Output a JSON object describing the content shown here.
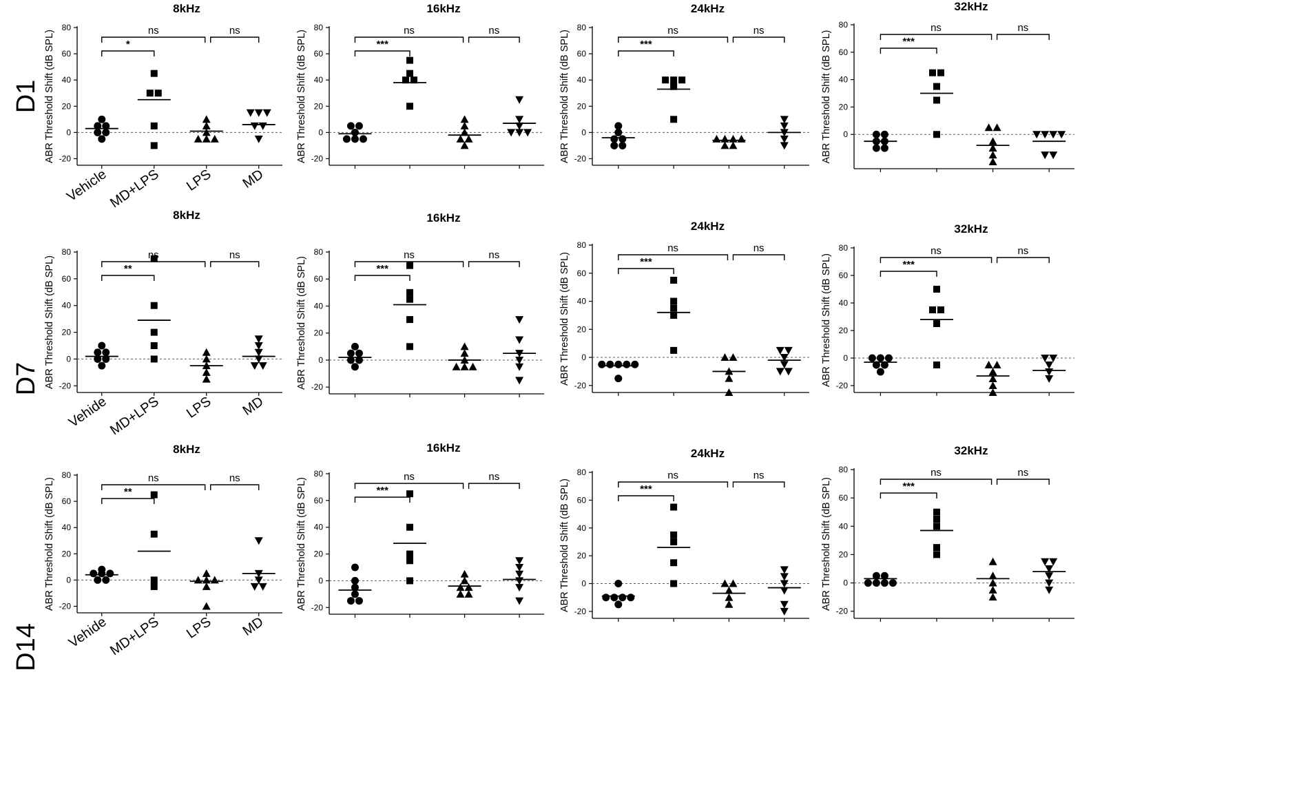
{
  "figure": {
    "row_labels": [
      "D1",
      "D7",
      "D14"
    ],
    "groups": [
      "Vehicle",
      "MD+LPS",
      "LPS",
      "MD"
    ],
    "group_markers": [
      "circle",
      "square",
      "triangle-up",
      "triangle-down"
    ],
    "ylabel": "ABR Threshold Shift (dB SPL)",
    "colors": {
      "ink": "#000000",
      "zero_line": "#555555"
    }
  },
  "chart_data": [
    {
      "type": "scatter",
      "row": "D1",
      "title": "8kHz",
      "ylabel": "ABR Threshold Shift (dB SPL)",
      "ylim": [
        -25,
        80
      ],
      "yticks": [
        -20,
        0,
        20,
        40,
        60,
        80
      ],
      "categories": [
        "Vehicle",
        "MD+LPS",
        "LPS",
        "MD"
      ],
      "category_labels": [
        "Vehicle",
        "MD+LPS",
        "LPS",
        "MD"
      ],
      "series": [
        {
          "points": [
            10,
            5,
            5,
            0,
            0,
            -5
          ],
          "mean": 3
        },
        {
          "points": [
            45,
            30,
            30,
            5,
            -10
          ],
          "mean": 25
        },
        {
          "points": [
            10,
            5,
            0,
            -5,
            -5,
            -5
          ],
          "mean": 1
        },
        {
          "points": [
            15,
            15,
            15,
            5,
            5,
            -5
          ],
          "mean": 6
        }
      ],
      "comparisons": [
        {
          "from": 0,
          "to": 1,
          "label": "*"
        },
        {
          "from": 0,
          "to": 2,
          "label": "ns"
        },
        {
          "from": 2,
          "to": 3,
          "label": "ns"
        }
      ]
    },
    {
      "type": "scatter",
      "row": "D1",
      "title": "16kHz",
      "ylabel": "ABR Threshold Shift (dB SPL)",
      "ylim": [
        -25,
        80
      ],
      "yticks": [
        -20,
        0,
        20,
        40,
        60,
        80
      ],
      "categories": [
        "Vehicle",
        "MD+LPS",
        "LPS",
        "MD"
      ],
      "category_labels": [],
      "series": [
        {
          "points": [
            5,
            5,
            0,
            -5,
            -5,
            -5
          ],
          "mean": -1
        },
        {
          "points": [
            55,
            45,
            40,
            40,
            20
          ],
          "mean": 38
        },
        {
          "points": [
            10,
            5,
            0,
            -5,
            -5,
            -10
          ],
          "mean": -2
        },
        {
          "points": [
            25,
            10,
            5,
            0,
            0,
            0
          ],
          "mean": 7
        }
      ],
      "comparisons": [
        {
          "from": 0,
          "to": 1,
          "label": "***"
        },
        {
          "from": 0,
          "to": 2,
          "label": "ns"
        },
        {
          "from": 2,
          "to": 3,
          "label": "ns"
        }
      ]
    },
    {
      "type": "scatter",
      "row": "D1",
      "title": "24kHz",
      "ylabel": "ABR Threshold Shift (dB SPL)",
      "ylim": [
        -25,
        80
      ],
      "yticks": [
        -20,
        0,
        20,
        40,
        60,
        80
      ],
      "categories": [
        "Vehicle",
        "MD+LPS",
        "LPS",
        "MD"
      ],
      "category_labels": [],
      "series": [
        {
          "points": [
            5,
            0,
            -5,
            -5,
            -10,
            -10
          ],
          "mean": -4
        },
        {
          "points": [
            40,
            40,
            40,
            35,
            10
          ],
          "mean": 33
        },
        {
          "points": [
            -5,
            -5,
            -5,
            -5,
            -10,
            -10
          ],
          "mean": -6
        },
        {
          "points": [
            10,
            5,
            0,
            -5,
            -10
          ],
          "mean": 0
        }
      ],
      "comparisons": [
        {
          "from": 0,
          "to": 1,
          "label": "***"
        },
        {
          "from": 0,
          "to": 2,
          "label": "ns"
        },
        {
          "from": 2,
          "to": 3,
          "label": "ns"
        }
      ]
    },
    {
      "type": "scatter",
      "row": "D1",
      "title": "32kHz",
      "ylabel": "ABR Threshold Shift (dB SPL)",
      "ylim": [
        -25,
        80
      ],
      "yticks": [
        0,
        20,
        40,
        60,
        80
      ],
      "categories": [
        "Vehicle",
        "MD+LPS",
        "LPS",
        "MD"
      ],
      "category_labels": [],
      "series": [
        {
          "points": [
            0,
            0,
            -5,
            -5,
            -10,
            -10
          ],
          "mean": -5
        },
        {
          "points": [
            45,
            45,
            35,
            25,
            0
          ],
          "mean": 30
        },
        {
          "points": [
            5,
            5,
            -5,
            -10,
            -15,
            -20
          ],
          "mean": -8
        },
        {
          "points": [
            0,
            0,
            0,
            0,
            -15,
            -15
          ],
          "mean": -5
        }
      ],
      "comparisons": [
        {
          "from": 0,
          "to": 1,
          "label": "***"
        },
        {
          "from": 0,
          "to": 2,
          "label": "ns"
        },
        {
          "from": 2,
          "to": 3,
          "label": "ns"
        }
      ]
    },
    {
      "type": "scatter",
      "row": "D7",
      "title": "8kHz",
      "ylabel": "ABR Threshold Shift (dB SPL)",
      "ylim": [
        -25,
        80
      ],
      "yticks": [
        -20,
        0,
        20,
        40,
        60,
        80
      ],
      "categories": [
        "Vehicle",
        "MD+LPS",
        "LPS",
        "MD"
      ],
      "category_labels": [
        "Vehide",
        "MD+LPS",
        "LPS",
        "MD"
      ],
      "series": [
        {
          "points": [
            10,
            5,
            5,
            0,
            0,
            -5
          ],
          "mean": 2
        },
        {
          "points": [
            75,
            40,
            20,
            10,
            0
          ],
          "mean": 29
        },
        {
          "points": [
            5,
            0,
            -5,
            -10,
            -15
          ],
          "mean": -5
        },
        {
          "points": [
            15,
            10,
            5,
            0,
            -5,
            -5
          ],
          "mean": 2
        }
      ],
      "comparisons": [
        {
          "from": 0,
          "to": 1,
          "label": "**"
        },
        {
          "from": 0,
          "to": 2,
          "label": "ns"
        },
        {
          "from": 2,
          "to": 3,
          "label": "ns"
        }
      ]
    },
    {
      "type": "scatter",
      "row": "D7",
      "title": "16kHz",
      "ylabel": "ABR Threshold Shift (dB SPL)",
      "ylim": [
        -25,
        80
      ],
      "yticks": [
        -20,
        0,
        20,
        40,
        60,
        80
      ],
      "categories": [
        "Vehicle",
        "MD+LPS",
        "LPS",
        "MD"
      ],
      "category_labels": [],
      "series": [
        {
          "points": [
            10,
            5,
            5,
            0,
            0,
            -5
          ],
          "mean": 2
        },
        {
          "points": [
            70,
            50,
            45,
            30,
            10
          ],
          "mean": 41
        },
        {
          "points": [
            10,
            5,
            0,
            -5,
            -5,
            -5
          ],
          "mean": 0
        },
        {
          "points": [
            30,
            15,
            5,
            0,
            -5,
            -15
          ],
          "mean": 5
        }
      ],
      "comparisons": [
        {
          "from": 0,
          "to": 1,
          "label": "***"
        },
        {
          "from": 0,
          "to": 2,
          "label": "ns"
        },
        {
          "from": 2,
          "to": 3,
          "label": "ns"
        }
      ]
    },
    {
      "type": "scatter",
      "row": "D7",
      "title": "24kHz",
      "ylabel": "ABR Threshold Shift (dB SPL)",
      "ylim": [
        -25,
        80
      ],
      "yticks": [
        -20,
        0,
        20,
        40,
        60,
        80
      ],
      "categories": [
        "Vehicle",
        "MD+LPS",
        "LPS",
        "MD"
      ],
      "category_labels": [],
      "series": [
        {
          "points": [
            -5,
            -5,
            -5,
            -5,
            -5,
            -15
          ],
          "mean": -6
        },
        {
          "points": [
            55,
            40,
            35,
            30,
            5
          ],
          "mean": 32
        },
        {
          "points": [
            0,
            0,
            -10,
            -15,
            -25
          ],
          "mean": -10
        },
        {
          "points": [
            5,
            5,
            0,
            -5,
            -10,
            -10
          ],
          "mean": -2
        }
      ],
      "comparisons": [
        {
          "from": 0,
          "to": 1,
          "label": "***"
        },
        {
          "from": 0,
          "to": 2,
          "label": "ns"
        },
        {
          "from": 2,
          "to": 3,
          "label": "ns"
        }
      ]
    },
    {
      "type": "scatter",
      "row": "D7",
      "title": "32kHz",
      "ylabel": "ABR Threshold Shift (dB SPL)",
      "ylim": [
        -25,
        80
      ],
      "yticks": [
        -20,
        0,
        20,
        40,
        60,
        80
      ],
      "categories": [
        "Vehicle",
        "MD+LPS",
        "LPS",
        "MD"
      ],
      "category_labels": [],
      "series": [
        {
          "points": [
            0,
            0,
            0,
            -5,
            -5,
            -10
          ],
          "mean": -3
        },
        {
          "points": [
            50,
            35,
            35,
            25,
            -5
          ],
          "mean": 28
        },
        {
          "points": [
            -5,
            -5,
            -10,
            -15,
            -20,
            -25
          ],
          "mean": -13
        },
        {
          "points": [
            0,
            0,
            -5,
            -10,
            -15
          ],
          "mean": -9
        }
      ],
      "comparisons": [
        {
          "from": 0,
          "to": 1,
          "label": "***"
        },
        {
          "from": 0,
          "to": 2,
          "label": "ns"
        },
        {
          "from": 2,
          "to": 3,
          "label": "ns"
        }
      ]
    },
    {
      "type": "scatter",
      "row": "D14",
      "title": "8kHz",
      "ylabel": "ABR Threshold Shift (dB SPL)",
      "ylim": [
        -25,
        80
      ],
      "yticks": [
        -20,
        0,
        20,
        40,
        60,
        80
      ],
      "categories": [
        "Vehicle",
        "MD+LPS",
        "LPS",
        "MD"
      ],
      "category_labels": [
        "Vehide",
        "MD+LPS",
        "LPS",
        "MD"
      ],
      "series": [
        {
          "points": [
            8,
            5,
            5,
            5,
            0,
            0
          ],
          "mean": 4
        },
        {
          "points": [
            65,
            35,
            0,
            -5
          ],
          "mean": 22
        },
        {
          "points": [
            5,
            0,
            0,
            0,
            -5,
            -20
          ],
          "mean": -1
        },
        {
          "points": [
            30,
            5,
            0,
            -5,
            -5
          ],
          "mean": 5
        }
      ],
      "comparisons": [
        {
          "from": 0,
          "to": 1,
          "label": "**"
        },
        {
          "from": 0,
          "to": 2,
          "label": "ns"
        },
        {
          "from": 2,
          "to": 3,
          "label": "ns"
        }
      ]
    },
    {
      "type": "scatter",
      "row": "D14",
      "title": "16kHz",
      "ylabel": "ABR Threshold Shift (dB SPL)",
      "ylim": [
        -25,
        80
      ],
      "yticks": [
        -20,
        0,
        20,
        40,
        60,
        80
      ],
      "categories": [
        "Vehicle",
        "MD+LPS",
        "LPS",
        "MD"
      ],
      "category_labels": [],
      "series": [
        {
          "points": [
            10,
            0,
            -5,
            -10,
            -15,
            -15
          ],
          "mean": -7
        },
        {
          "points": [
            65,
            40,
            20,
            15,
            0
          ],
          "mean": 28
        },
        {
          "points": [
            5,
            0,
            -5,
            -5,
            -10,
            -10
          ],
          "mean": -4
        },
        {
          "points": [
            15,
            10,
            5,
            0,
            -5,
            -15
          ],
          "mean": 1
        }
      ],
      "comparisons": [
        {
          "from": 0,
          "to": 1,
          "label": "***"
        },
        {
          "from": 0,
          "to": 2,
          "label": "ns"
        },
        {
          "from": 2,
          "to": 3,
          "label": "ns"
        }
      ]
    },
    {
      "type": "scatter",
      "row": "D14",
      "title": "24kHz",
      "ylabel": "ABR Threshold Shift (dB SPL)",
      "ylim": [
        -25,
        80
      ],
      "yticks": [
        -20,
        0,
        20,
        40,
        60,
        80
      ],
      "categories": [
        "Vehicle",
        "MD+LPS",
        "LPS",
        "MD"
      ],
      "category_labels": [],
      "series": [
        {
          "points": [
            0,
            -10,
            -10,
            -10,
            -10,
            -15
          ],
          "mean": -9
        },
        {
          "points": [
            55,
            35,
            30,
            15,
            0
          ],
          "mean": 26
        },
        {
          "points": [
            0,
            0,
            -5,
            -10,
            -15
          ],
          "mean": -7
        },
        {
          "points": [
            10,
            5,
            0,
            -5,
            -15,
            -20
          ],
          "mean": -3
        }
      ],
      "comparisons": [
        {
          "from": 0,
          "to": 1,
          "label": "***"
        },
        {
          "from": 0,
          "to": 2,
          "label": "ns"
        },
        {
          "from": 2,
          "to": 3,
          "label": "ns"
        }
      ]
    },
    {
      "type": "scatter",
      "row": "D14",
      "title": "32kHz",
      "ylabel": "ABR Threshold Shift (dB SPL)",
      "ylim": [
        -25,
        80
      ],
      "yticks": [
        -20,
        0,
        20,
        40,
        60,
        80
      ],
      "categories": [
        "Vehicle",
        "MD+LPS",
        "LPS",
        "MD"
      ],
      "category_labels": [],
      "series": [
        {
          "points": [
            5,
            5,
            0,
            0,
            0,
            0
          ],
          "mean": 3
        },
        {
          "points": [
            50,
            45,
            40,
            25,
            20
          ],
          "mean": 37
        },
        {
          "points": [
            15,
            5,
            0,
            -5,
            -10
          ],
          "mean": 3
        },
        {
          "points": [
            15,
            15,
            10,
            5,
            0,
            -5
          ],
          "mean": 8
        }
      ],
      "comparisons": [
        {
          "from": 0,
          "to": 1,
          "label": "***"
        },
        {
          "from": 0,
          "to": 2,
          "label": "ns"
        },
        {
          "from": 2,
          "to": 3,
          "label": "ns"
        }
      ]
    }
  ]
}
